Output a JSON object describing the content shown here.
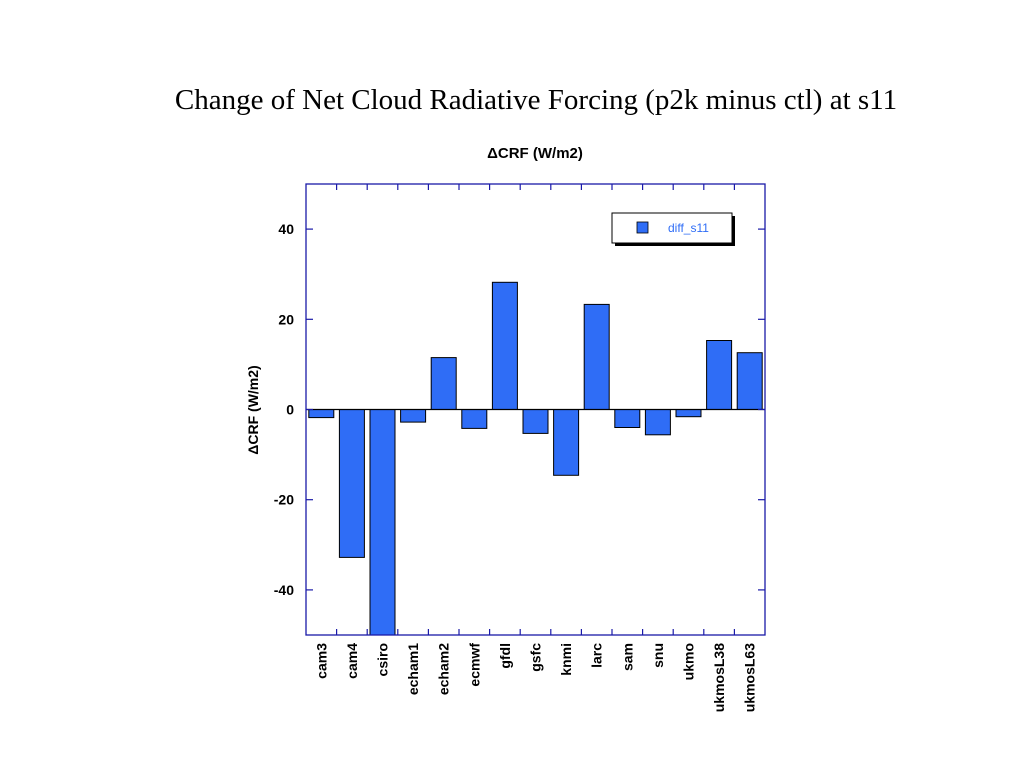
{
  "slide": {
    "title": "Change of Net Cloud Radiative Forcing (p2k minus ctl) at s11"
  },
  "chart_data": {
    "type": "bar",
    "title": "ΔCRF (W/m2)",
    "ylabel": "ΔCRF (W/m2)",
    "xlabel": "",
    "ylim": [
      -50,
      50
    ],
    "yticks": [
      40,
      20,
      0,
      -20,
      -40
    ],
    "grid": false,
    "legend_position": "top-right",
    "categories": [
      "cam3",
      "cam4",
      "csiro",
      "echam1",
      "echam2",
      "ecmwf",
      "gfdl",
      "gsfc",
      "knmi",
      "larc",
      "sam",
      "snu",
      "ukmo",
      "ukmosL38",
      "ukmosL63"
    ],
    "series": [
      {
        "name": "diff_s11",
        "color": "#2F6DF6",
        "values": [
          -1.8,
          -32.8,
          -50,
          -2.8,
          11.5,
          -4.2,
          28.2,
          -5.3,
          -14.6,
          23.3,
          -4.0,
          -5.6,
          -1.6,
          15.3,
          12.6
        ]
      }
    ],
    "colors": {
      "axis": "#1a1aa8",
      "bar_outline": "#000000"
    }
  }
}
